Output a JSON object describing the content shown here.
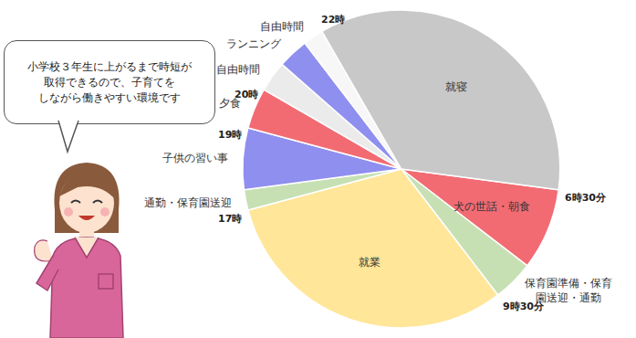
{
  "chart_data": {
    "type": "pie",
    "categories": [
      "犬の世話・朝食",
      "保育園準備・保育園送迎・通勤",
      "就業",
      "通勤・保育園送迎",
      "子供の習い事",
      "夕食",
      "自由時間",
      "ランニング",
      "自由時間",
      "就寝"
    ],
    "values": [
      2,
      1,
      7.5,
      0.5,
      1.5,
      1,
      0.75,
      0.75,
      0.5,
      8.5
    ],
    "colors": [
      "#f26b73",
      "#c6e0b4",
      "#ffe699",
      "#c6e0b4",
      "#8f8ff0",
      "#f26b73",
      "#ebebeb",
      "#8f8ff0",
      "#f7f7f7",
      "#c8c8c8"
    ],
    "time_labels": [
      {
        "value": 6.5,
        "label": "6時30分"
      },
      {
        "value": 9.5,
        "label": "9時30分"
      },
      {
        "value": 17,
        "label": "17時"
      },
      {
        "value": 19,
        "label": "19時"
      },
      {
        "value": 20,
        "label": "20時"
      },
      {
        "value": 22,
        "label": "22時"
      }
    ],
    "speech": [
      "小学校３年生に上がるまで時短が",
      "取得できるので、子育てを",
      "しながら働きやすい環境です"
    ]
  }
}
